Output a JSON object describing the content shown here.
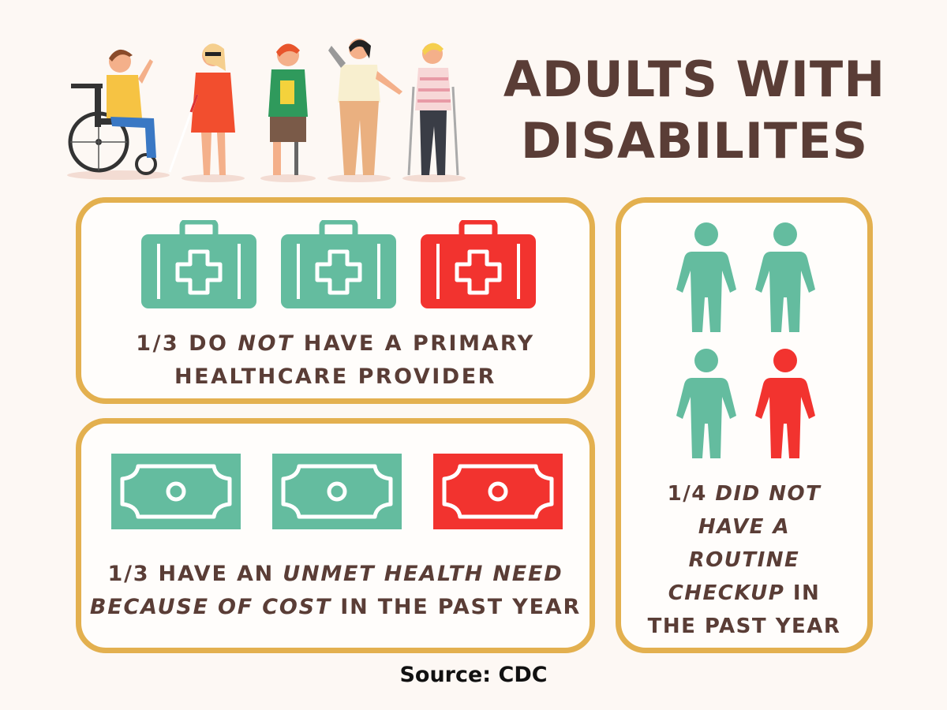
{
  "title": {
    "line1": "ADULTS WITH",
    "line2": "DISABILITES"
  },
  "colors": {
    "teal": "#64bc9f",
    "red": "#f2332f",
    "border": "#e3b04f",
    "text": "#5a3d36"
  },
  "card_healthcare": {
    "icons": [
      "medical-kit-icon",
      "medical-kit-icon",
      "medical-kit-icon"
    ],
    "caption": {
      "part1": "1/3 DO ",
      "emph": "NOT",
      "part2": " HAVE A PRIMARY",
      "line2": "HEALTHCARE PROVIDER"
    }
  },
  "card_cost": {
    "icons": [
      "banknote-icon",
      "banknote-icon",
      "banknote-icon"
    ],
    "caption": {
      "part1": "1/3 HAVE AN ",
      "emph1": "UNMET HEALTH NEED",
      "emph2": "BECAUSE OF COST",
      "part2": " IN THE PAST YEAR"
    }
  },
  "card_checkup": {
    "icons": [
      "person-icon",
      "person-icon",
      "person-icon",
      "person-icon"
    ],
    "caption": {
      "line1a": "1/4 ",
      "line1b": "DID NOT",
      "line2": "HAVE A",
      "line3": "ROUTINE",
      "line4a": "CHECKUP",
      "line4b": " IN",
      "line5": "THE PAST YEAR"
    }
  },
  "source": "Source: CDC"
}
